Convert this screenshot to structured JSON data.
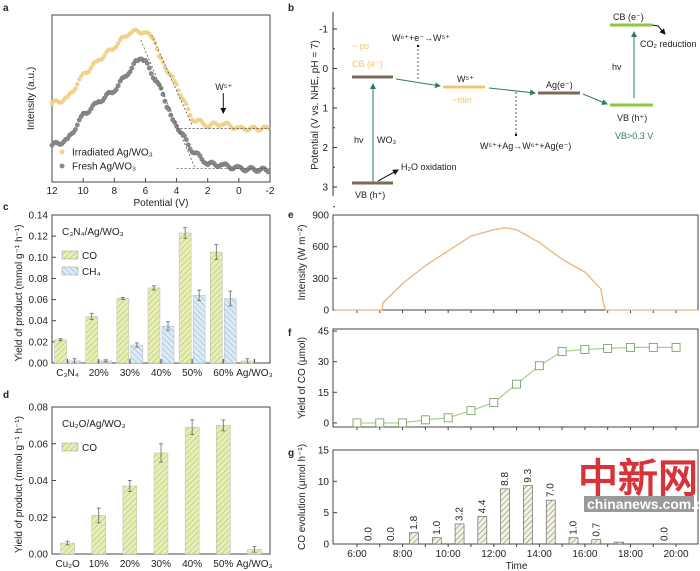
{
  "colors": {
    "irradiated": "#f2d28a",
    "fresh": "#8a8a8a",
    "co_fill": "#e8eeb6",
    "co_hatch": "#a9b860",
    "ch4_fill": "#dcebf5",
    "ch4_hatch": "#86afd0",
    "intensity_line": "#f0b27a",
    "co_line": "#a8cf8a",
    "level_brown": "#7a6a5a",
    "level_orange": "#f2c46d",
    "level_green": "#8cc63f",
    "arrow_green": "#2e7d5b",
    "watermark": "#d0101a"
  },
  "panels": {
    "a": "a",
    "b": "b",
    "c": "c",
    "d": "d",
    "e": "e",
    "f": "f",
    "g": "g"
  },
  "chart_data": [
    {
      "id": "a",
      "type": "scatter",
      "xlabel": "Potential (V)",
      "ylabel": "Intensity (a.u.)",
      "xlim": [
        12,
        -2
      ],
      "xticks": [
        "12",
        "10",
        "8",
        "6",
        "4",
        "2",
        "0",
        "-2"
      ],
      "annotation": "W⁵⁺",
      "series": [
        {
          "name": "Irradiated Ag/WO₃",
          "points": [
            [
              12,
              0.47
            ],
            [
              11,
              0.5
            ],
            [
              10,
              0.64
            ],
            [
              9,
              0.73
            ],
            [
              8,
              0.81
            ],
            [
              7,
              0.9
            ],
            [
              6,
              0.9
            ],
            [
              5.5,
              0.85
            ],
            [
              5,
              0.73
            ],
            [
              4,
              0.58
            ],
            [
              3,
              0.38
            ],
            [
              2,
              0.34
            ],
            [
              1,
              0.35
            ],
            [
              0,
              0.32
            ],
            [
              -2,
              0.32
            ]
          ]
        },
        {
          "name": "Fresh Ag/WO₃",
          "points": [
            [
              12,
              0.22
            ],
            [
              11,
              0.25
            ],
            [
              10,
              0.4
            ],
            [
              9,
              0.48
            ],
            [
              8,
              0.55
            ],
            [
              7,
              0.67
            ],
            [
              6.5,
              0.73
            ],
            [
              6,
              0.72
            ],
            [
              5,
              0.55
            ],
            [
              4.5,
              0.43
            ],
            [
              4,
              0.34
            ],
            [
              3,
              0.19
            ],
            [
              2,
              0.11
            ],
            [
              1,
              0.1
            ],
            [
              0,
              0.08
            ],
            [
              -2,
              0.07
            ]
          ]
        }
      ]
    },
    {
      "id": "c",
      "type": "bar",
      "title": "C₃N₄/Ag/WO₃",
      "ylabel": "Yield of product (mmol g⁻¹ h⁻¹)",
      "ylim": [
        0,
        0.14
      ],
      "yticks": [
        "0.00",
        "0.02",
        "0.04",
        "0.06",
        "0.08",
        "0.10",
        "0.12",
        "0.14"
      ],
      "categories": [
        "C₃N₄",
        "20%",
        "30%",
        "40%",
        "50%",
        "60%",
        "Ag/WO₃"
      ],
      "series": [
        {
          "name": "CO",
          "values": [
            0.022,
            0.044,
            0.061,
            0.071,
            0.123,
            0.105,
            0.002
          ],
          "errors": [
            0.001,
            0.003,
            0.001,
            0.002,
            0.005,
            0.007,
            0.002
          ]
        },
        {
          "name": "CH₄",
          "values": [
            0.002,
            0.002,
            0.017,
            0.035,
            0.064,
            0.061,
            null
          ],
          "errors": [
            0.002,
            0.001,
            0.002,
            0.004,
            0.005,
            0.007,
            null
          ]
        }
      ]
    },
    {
      "id": "d",
      "type": "bar",
      "title": "Cu₂O/Ag/WO₃",
      "ylabel": "Yield of product (mmol g⁻¹ h⁻¹)",
      "ylim": [
        0,
        0.08
      ],
      "yticks": [
        "0.00",
        "0.02",
        "0.04",
        "0.06",
        "0.08"
      ],
      "categories": [
        "Cu₂O",
        "10%",
        "20%",
        "30%",
        "40%",
        "50%",
        "Ag/WO₃"
      ],
      "series": [
        {
          "name": "CO",
          "values": [
            0.006,
            0.021,
            0.037,
            0.055,
            0.069,
            0.07,
            0.0025
          ],
          "errors": [
            0.001,
            0.004,
            0.003,
            0.005,
            0.004,
            0.003,
            0.0015
          ]
        }
      ]
    },
    {
      "id": "e",
      "type": "line",
      "ylabel": "Intensity (W m⁻²)",
      "ylim": [
        0,
        900
      ],
      "yticks": [
        "0",
        "300",
        "600",
        "900"
      ],
      "x": [
        5,
        7.1,
        7.15,
        8,
        9,
        10,
        11,
        12,
        12.5,
        13,
        14,
        15,
        16,
        16.7,
        16.8,
        16.9,
        17,
        21
      ],
      "values": [
        0,
        0,
        70,
        250,
        420,
        560,
        700,
        760,
        780,
        760,
        640,
        480,
        360,
        200,
        80,
        0,
        0,
        0
      ]
    },
    {
      "id": "f",
      "type": "line",
      "ylabel": "Yield of CO (μmol)",
      "ylim": [
        -2,
        46
      ],
      "yticks": [
        "0",
        "15",
        "30",
        "45"
      ],
      "x": [
        "6:00",
        "7:00",
        "8:00",
        "9:00",
        "10:00",
        "11:00",
        "12:00",
        "13:00",
        "14:00",
        "15:00",
        "16:00",
        "17:00",
        "18:00",
        "19:00",
        "20:00"
      ],
      "values": [
        0,
        0,
        0,
        1.5,
        2.5,
        6,
        10,
        19,
        28,
        35,
        36,
        36.5,
        37,
        37,
        37
      ]
    },
    {
      "id": "g",
      "type": "bar",
      "xlabel": "Time",
      "ylabel": "CO evolution (μmol h⁻¹)",
      "ylim": [
        0,
        15
      ],
      "yticks": [
        "0",
        "5",
        "10",
        "15"
      ],
      "xticks": [
        "6:00",
        "8:00",
        "10:00",
        "12:00",
        "14:00",
        "16:00",
        "18:00",
        "20:00"
      ],
      "categories": [
        "6:00-7:00",
        "7:00-8:00",
        "8:00-9:00",
        "9:00-10:00",
        "10:00-11:00",
        "11:00-12:00",
        "12:00-13:00",
        "13:00-14:00",
        "14:00-15:00",
        "15:00-16:00",
        "16:00-17:00",
        "17:00-18:00",
        "18:00-19:00",
        "19:00-20:00"
      ],
      "values": [
        0.0,
        0.0,
        1.8,
        1.0,
        3.2,
        4.4,
        8.8,
        9.3,
        7.0,
        1.0,
        0.7,
        0.3,
        0.0,
        0.0
      ],
      "labels": [
        "0.0",
        "0.0",
        "1.8",
        "1.0",
        "3.2",
        "4.4",
        "8.8",
        "9.3",
        "7.0",
        "1.0",
        "0.7",
        "",
        "",
        "0.0"
      ]
    }
  ],
  "diagram_b": {
    "ylabel": "Potential (V vs. NHE, pH = 7)",
    "yticks": [
      "-1",
      "0",
      "1",
      "2",
      "3"
    ],
    "ps": "~ ps",
    "cb_wo3": "CB (e⁻)",
    "vb_wo3": "VB (h⁺)",
    "hv1": "hv",
    "wo3": "WO₃",
    "h2o": "H₂O oxidation",
    "w_reaction1": "W⁶⁺+e⁻→W⁵⁺",
    "w5": "W⁵⁺",
    "min": "~min",
    "w_reaction2": "W⁵⁺+Ag→W⁶⁺+Ag(e⁻)",
    "ag": "Ag(e⁻)",
    "cb2": "CB (e⁻)",
    "co2": "CO₂ reduction",
    "hv2": "hv",
    "vb2": "VB (h⁺)",
    "vb_note": "VB>0.3 V"
  },
  "watermark": {
    "logo": "中新网",
    "url": "chinanews.com.cn"
  }
}
